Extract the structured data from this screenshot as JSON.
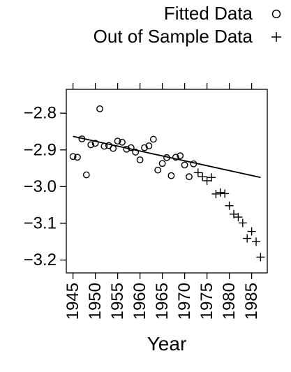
{
  "chart_data": {
    "type": "scatter",
    "xlabel": "Year",
    "ylabel": "",
    "xlim": [
      1943.5,
      1988.5
    ],
    "ylim": [
      -3.235,
      -2.735
    ],
    "x_ticks": [
      1945,
      1950,
      1955,
      1960,
      1965,
      1970,
      1975,
      1980,
      1985
    ],
    "x_tick_labels": [
      "1945",
      "1950",
      "1955",
      "1960",
      "1965",
      "1970",
      "1975",
      "1980",
      "1985"
    ],
    "y_ticks": [
      -2.8,
      -2.9,
      -3.0,
      -3.1,
      -3.2
    ],
    "y_tick_labels": [
      "−2.8",
      "−2.9",
      "−3.0",
      "−3.1",
      "−3.2"
    ],
    "grid": false,
    "legend_position": "top-right",
    "series": [
      {
        "name": "Fitted Data",
        "marker": "circle",
        "points": [
          [
            1945,
            -2.918
          ],
          [
            1946,
            -2.92
          ],
          [
            1947,
            -2.87
          ],
          [
            1948,
            -2.968
          ],
          [
            1949,
            -2.886
          ],
          [
            1950,
            -2.882
          ],
          [
            1951,
            -2.788
          ],
          [
            1952,
            -2.89
          ],
          [
            1953,
            -2.888
          ],
          [
            1954,
            -2.896
          ],
          [
            1955,
            -2.876
          ],
          [
            1956,
            -2.879
          ],
          [
            1957,
            -2.898
          ],
          [
            1958,
            -2.894
          ],
          [
            1959,
            -2.906
          ],
          [
            1960,
            -2.927
          ],
          [
            1961,
            -2.894
          ],
          [
            1962,
            -2.889
          ],
          [
            1963,
            -2.871
          ],
          [
            1964,
            -2.955
          ],
          [
            1965,
            -2.937
          ],
          [
            1966,
            -2.921
          ],
          [
            1967,
            -2.97
          ],
          [
            1968,
            -2.92
          ],
          [
            1969,
            -2.916
          ],
          [
            1970,
            -2.941
          ],
          [
            1971,
            -2.973
          ],
          [
            1972,
            -2.938
          ]
        ]
      },
      {
        "name": "Out of Sample Data",
        "marker": "plus",
        "points": [
          [
            1973,
            -2.962
          ],
          [
            1974,
            -2.973
          ],
          [
            1975,
            -2.984
          ],
          [
            1976,
            -2.975
          ],
          [
            1977,
            -3.02
          ],
          [
            1978,
            -3.016
          ],
          [
            1979,
            -3.019
          ],
          [
            1980,
            -3.052
          ],
          [
            1981,
            -3.075
          ],
          [
            1982,
            -3.083
          ],
          [
            1983,
            -3.099
          ],
          [
            1984,
            -3.141
          ],
          [
            1985,
            -3.122
          ],
          [
            1986,
            -3.15
          ],
          [
            1987,
            -3.192
          ]
        ]
      },
      {
        "marker": "line",
        "points": [
          [
            1945,
            -2.863
          ],
          [
            1987,
            -2.975
          ]
        ]
      }
    ]
  }
}
